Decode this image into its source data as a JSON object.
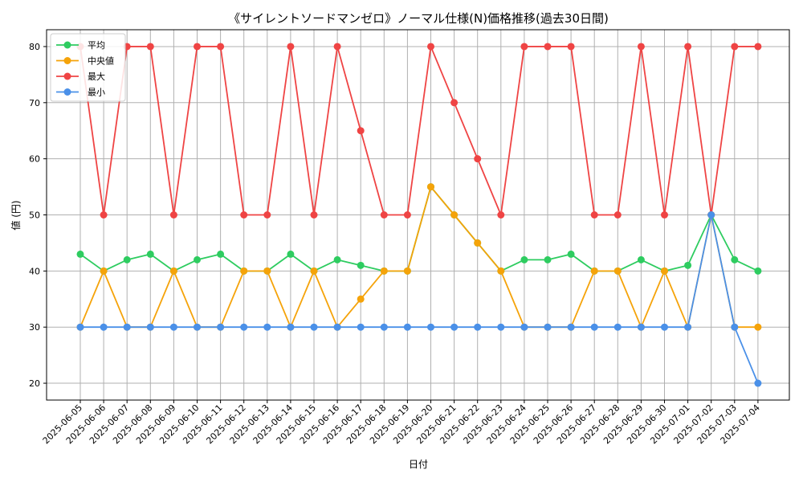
{
  "chart_data": {
    "type": "line",
    "title": "《サイレントソードマンゼロ》ノーマル仕様(N)価格推移(過去30日間)",
    "xlabel": "日付",
    "ylabel": "値 (円)",
    "ylim": [
      17,
      83
    ],
    "yticks": [
      20,
      30,
      40,
      50,
      60,
      70,
      80
    ],
    "grid": true,
    "legend_position": "top-left",
    "categories": [
      "2025-06-05",
      "2025-06-06",
      "2025-06-07",
      "2025-06-08",
      "2025-06-09",
      "2025-06-10",
      "2025-06-11",
      "2025-06-12",
      "2025-06-13",
      "2025-06-14",
      "2025-06-15",
      "2025-06-16",
      "2025-06-17",
      "2025-06-18",
      "2025-06-19",
      "2025-06-20",
      "2025-06-21",
      "2025-06-22",
      "2025-06-23",
      "2025-06-24",
      "2025-06-25",
      "2025-06-26",
      "2025-06-27",
      "2025-06-28",
      "2025-06-29",
      "2025-06-30",
      "2025-07-01",
      "2025-07-02",
      "2025-07-03",
      "2025-07-04"
    ],
    "series": [
      {
        "name": "平均",
        "color": "#2ecc60",
        "values": [
          43,
          40,
          42,
          43,
          40,
          42,
          43,
          40,
          40,
          43,
          40,
          42,
          41,
          40,
          40,
          55,
          50,
          45,
          40,
          42,
          42,
          43,
          40,
          40,
          42,
          40,
          41,
          50,
          42,
          40
        ]
      },
      {
        "name": "中央値",
        "color": "#f5a30a",
        "values": [
          30,
          40,
          30,
          30,
          40,
          30,
          30,
          40,
          40,
          30,
          40,
          30,
          35,
          40,
          40,
          55,
          50,
          45,
          40,
          30,
          30,
          30,
          40,
          40,
          30,
          40,
          30,
          50,
          30,
          30
        ]
      },
      {
        "name": "最大",
        "color": "#ef4444",
        "values": [
          80,
          50,
          80,
          80,
          50,
          80,
          80,
          50,
          50,
          80,
          50,
          80,
          65,
          50,
          50,
          80,
          70,
          60,
          50,
          80,
          80,
          80,
          50,
          50,
          80,
          50,
          80,
          50,
          80,
          80
        ]
      },
      {
        "name": "最小",
        "color": "#4a90e8",
        "values": [
          30,
          30,
          30,
          30,
          30,
          30,
          30,
          30,
          30,
          30,
          30,
          30,
          30,
          30,
          30,
          30,
          30,
          30,
          30,
          30,
          30,
          30,
          30,
          30,
          30,
          30,
          30,
          50,
          30,
          20
        ]
      }
    ]
  }
}
